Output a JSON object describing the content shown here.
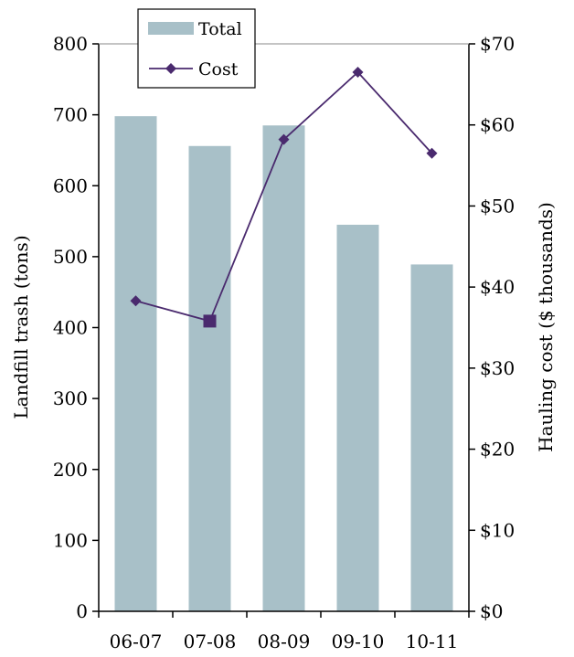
{
  "chart_data": {
    "type": "bar+line",
    "categories": [
      "06-07",
      "07-08",
      "08-09",
      "09-10",
      "10-11"
    ],
    "series": [
      {
        "name": "Total",
        "type": "bar",
        "axis": "left",
        "values": [
          698,
          656,
          685,
          545,
          489
        ],
        "color": "#a8c0c8"
      },
      {
        "name": "Cost",
        "type": "line",
        "axis": "right",
        "values": [
          38.3,
          35.8,
          58.2,
          66.5,
          56.5
        ],
        "color": "#4a2a6e"
      }
    ],
    "left_axis": {
      "label": "Landfill trash (tons)",
      "range": [
        0,
        800
      ],
      "ticks": [
        0,
        100,
        200,
        300,
        400,
        500,
        600,
        700,
        800
      ],
      "tick_labels": [
        "0",
        "100",
        "200",
        "300",
        "400",
        "500",
        "600",
        "700",
        "800"
      ]
    },
    "right_axis": {
      "label": "Hauling cost ($ thousands)",
      "range": [
        0,
        70
      ],
      "ticks": [
        0,
        10,
        20,
        30,
        40,
        50,
        60,
        70
      ],
      "tick_labels": [
        "$0",
        "$10",
        "$20",
        "$30",
        "$40",
        "$50",
        "$60",
        "$70"
      ]
    },
    "grid": false,
    "legend": {
      "position": "top-left",
      "entries": [
        "Total",
        "Cost"
      ]
    }
  }
}
